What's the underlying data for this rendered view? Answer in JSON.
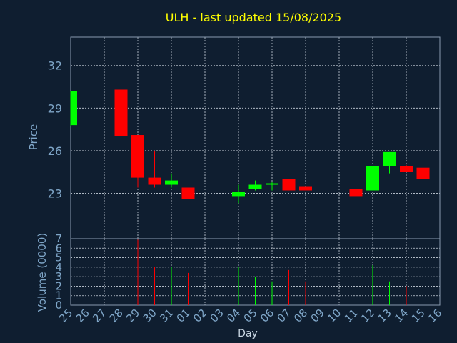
{
  "chart_data": {
    "type": "candlestick",
    "title": "ULH - last updated 15/08/2025",
    "xlabel": "Day",
    "price_ylabel": "Price",
    "volume_ylabel": "Volume (0000)",
    "price_yticks": [
      23,
      26,
      29,
      32
    ],
    "price_ylim": [
      19.8,
      34.0
    ],
    "volume_yticks": [
      0,
      1,
      2,
      3,
      4,
      5,
      6,
      7
    ],
    "volume_ylim": [
      0,
      7
    ],
    "categories": [
      "25",
      "26",
      "27",
      "28",
      "29",
      "30",
      "31",
      "01",
      "02",
      "03",
      "04",
      "05",
      "06",
      "07",
      "08",
      "09",
      "10",
      "11",
      "12",
      "13",
      "14",
      "15",
      "16"
    ],
    "candles": [
      {
        "day": "25",
        "open": 27.8,
        "high": 30.2,
        "low": 27.7,
        "close": 30.2,
        "volume": 0.0
      },
      {
        "day": "28",
        "open": 30.3,
        "high": 30.8,
        "low": 27.0,
        "close": 27.0,
        "volume": 5.6
      },
      {
        "day": "29",
        "open": 27.1,
        "high": 27.1,
        "low": 23.4,
        "close": 24.1,
        "volume": 6.9
      },
      {
        "day": "30",
        "open": 24.1,
        "high": 26.0,
        "low": 23.4,
        "close": 23.6,
        "volume": 4.0
      },
      {
        "day": "31",
        "open": 23.6,
        "high": 24.4,
        "low": 23.4,
        "close": 23.9,
        "volume": 4.0
      },
      {
        "day": "01",
        "open": 23.4,
        "high": 23.4,
        "low": 22.6,
        "close": 22.6,
        "volume": 3.4
      },
      {
        "day": "04",
        "open": 22.8,
        "high": 23.6,
        "low": 22.3,
        "close": 23.1,
        "volume": 4.0
      },
      {
        "day": "05",
        "open": 23.3,
        "high": 23.9,
        "low": 23.2,
        "close": 23.6,
        "volume": 3.0
      },
      {
        "day": "06",
        "open": 23.6,
        "high": 23.8,
        "low": 23.2,
        "close": 23.7,
        "volume": 2.5
      },
      {
        "day": "07",
        "open": 24.0,
        "high": 24.0,
        "low": 23.2,
        "close": 23.2,
        "volume": 3.7
      },
      {
        "day": "08",
        "open": 23.5,
        "high": 23.5,
        "low": 23.2,
        "close": 23.2,
        "volume": 2.5
      },
      {
        "day": "11",
        "open": 23.3,
        "high": 23.5,
        "low": 22.6,
        "close": 22.8,
        "volume": 2.5
      },
      {
        "day": "12",
        "open": 23.2,
        "high": 24.9,
        "low": 23.2,
        "close": 24.9,
        "volume": 4.2
      },
      {
        "day": "13",
        "open": 24.9,
        "high": 25.9,
        "low": 24.4,
        "close": 25.9,
        "volume": 2.5
      },
      {
        "day": "14",
        "open": 24.9,
        "high": 25.0,
        "low": 24.5,
        "close": 24.5,
        "volume": 2.0
      },
      {
        "day": "15",
        "open": 24.8,
        "high": 24.9,
        "low": 23.9,
        "close": 24.0,
        "volume": 2.2
      }
    ],
    "grid": true,
    "colors": {
      "background": "#0f1e30",
      "up": "#00ff00",
      "down": "#ff0000",
      "title": "#ffff00",
      "axis_text": "#7fa6c8",
      "grid": "#ffffff",
      "frame": "#ffffff"
    }
  }
}
